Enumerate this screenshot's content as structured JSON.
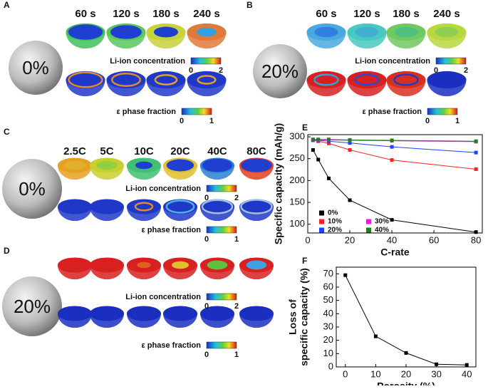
{
  "panels": [
    {
      "label": "A",
      "sphere_label": "0%",
      "headers": [
        "60 s",
        "120 s",
        "180 s",
        "240 s"
      ],
      "bar1_title": "Li-ion concentration",
      "bar1_range": [
        0,
        2
      ],
      "bar2_title": "ε phase fraction",
      "bar2_range": [
        0,
        1
      ]
    },
    {
      "label": "B",
      "sphere_label": "20%",
      "headers": [
        "60 s",
        "120 s",
        "180 s",
        "240 s"
      ],
      "bar1_title": "Li-ion concentration",
      "bar1_range": [
        0,
        2
      ],
      "bar2_title": "ε phase fraction",
      "bar2_range": [
        0,
        1
      ]
    },
    {
      "label": "C",
      "sphere_label": "0%",
      "headers": [
        "2.5C",
        "5C",
        "10C",
        "20C",
        "40C",
        "80C"
      ],
      "bar1_title": "Li-ion concentration",
      "bar1_range": [
        0,
        2
      ],
      "bar2_title": "ε phase fraction",
      "bar2_range": [
        0,
        1
      ]
    },
    {
      "label": "D",
      "sphere_label": "20%",
      "bar1_title": "Li-ion concentration",
      "bar1_range": [
        0,
        2
      ],
      "bar2_title": "ε phase fraction",
      "bar2_range": [
        0,
        1
      ]
    }
  ],
  "chart_data": [
    {
      "type": "line",
      "panel_label": "E",
      "x": [
        2.5,
        5,
        10,
        20,
        40,
        80
      ],
      "series": [
        {
          "name": "0%",
          "color": "#000000",
          "values": [
            270,
            248,
            205,
            155,
            110,
            82
          ]
        },
        {
          "name": "10%",
          "color": "#ff2020",
          "values": [
            292,
            290,
            285,
            270,
            247,
            226
          ]
        },
        {
          "name": "20%",
          "color": "#2040ff",
          "values": [
            293,
            292,
            290,
            286,
            277,
            264
          ]
        },
        {
          "name": "30%",
          "color": "#e020e0",
          "values": [
            294,
            293,
            293,
            292,
            291,
            289
          ]
        },
        {
          "name": "40%",
          "color": "#208020",
          "values": [
            294,
            294,
            294,
            293,
            292,
            290
          ]
        }
      ],
      "xlim": [
        0,
        83
      ],
      "xticks": [
        0,
        20,
        40,
        60,
        80
      ],
      "ylim": [
        80,
        305
      ],
      "yticks": [
        100,
        150,
        200,
        250,
        300
      ],
      "xlabel": "C-rate",
      "ylabel": [
        "Specific capacity (mAh/g)"
      ],
      "legend": "lower-left"
    },
    {
      "type": "line",
      "panel_label": "F",
      "x": [
        0,
        10,
        20,
        30,
        40
      ],
      "series": [
        {
          "name": null,
          "color": "#000000",
          "values": [
            69,
            23,
            10.5,
            2,
            1.5
          ]
        }
      ],
      "xlim": [
        -3,
        43
      ],
      "xticks": [
        0,
        10,
        20,
        30,
        40
      ],
      "ylim": [
        0,
        75
      ],
      "yticks": [
        0,
        10,
        20,
        30,
        40,
        50,
        60,
        70
      ],
      "xlabel": "Porosity (%)",
      "ylabel": [
        "Loss of",
        "specific capacity (%)"
      ]
    }
  ]
}
